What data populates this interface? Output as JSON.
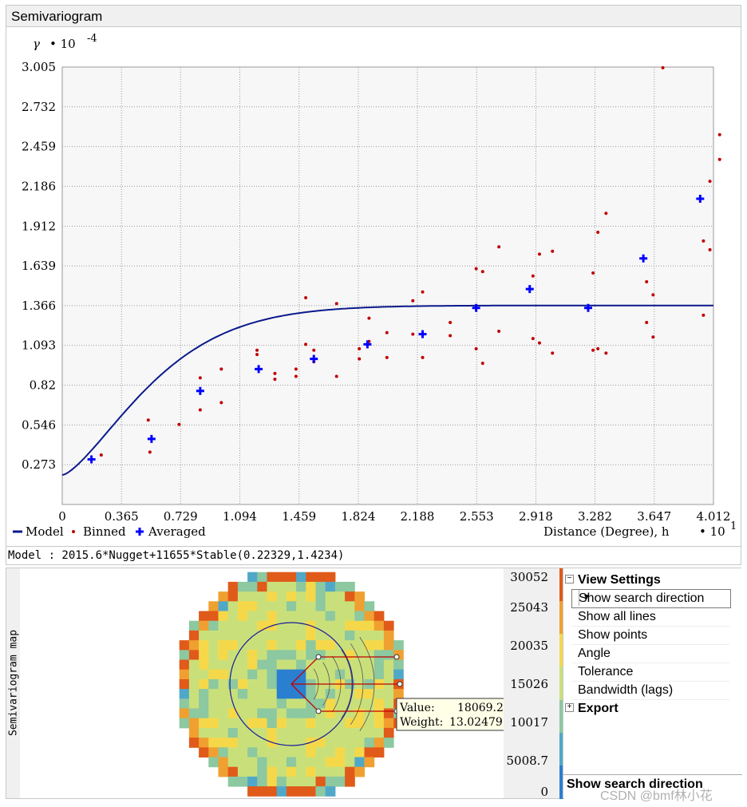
{
  "window": {
    "title": "Semivariogram"
  },
  "chart_data": {
    "type": "scatter",
    "ylabel_symbol": "γ",
    "ylabel_scale": "• 10",
    "ylabel_exp": "-4",
    "xlabel": "Distance (Degree), h",
    "xlabel_scale": "• 10",
    "xlabel_exp": "1",
    "xlim": [
      0,
      4.012
    ],
    "ylim": [
      0,
      3.005
    ],
    "x_ticks": [
      "0",
      "0.365",
      "0.729",
      "1.094",
      "1.459",
      "1.824",
      "2.188",
      "2.553",
      "2.918",
      "3.282",
      "3.647",
      "4.012"
    ],
    "y_ticks": [
      "0.273",
      "0.546",
      "0.82",
      "1.093",
      "1.366",
      "1.639",
      "1.912",
      "2.186",
      "2.459",
      "2.732",
      "3.005"
    ],
    "grid": true,
    "legend": [
      {
        "label": "Model",
        "symbol": "line",
        "color": "#0a1a8c"
      },
      {
        "label": "Binned",
        "symbol": "dot",
        "color": "#c00000"
      },
      {
        "label": "Averaged",
        "symbol": "plus",
        "color": "#0000ff"
      }
    ],
    "model": {
      "nugget": 0.20156,
      "sill_partial": 1.1655,
      "range": 1.4234,
      "shape": 0.22329
    },
    "binned": [
      [
        0.24,
        0.34
      ],
      [
        0.53,
        0.58
      ],
      [
        0.54,
        0.36
      ],
      [
        0.72,
        0.55
      ],
      [
        0.85,
        0.87
      ],
      [
        0.85,
        0.65
      ],
      [
        0.98,
        0.93
      ],
      [
        0.98,
        0.7
      ],
      [
        1.2,
        1.03
      ],
      [
        1.2,
        1.06
      ],
      [
        1.31,
        0.9
      ],
      [
        1.31,
        0.86
      ],
      [
        1.44,
        0.93
      ],
      [
        1.44,
        0.88
      ],
      [
        1.5,
        1.1
      ],
      [
        1.5,
        1.42
      ],
      [
        1.55,
        1.06
      ],
      [
        1.55,
        0.98
      ],
      [
        1.69,
        1.38
      ],
      [
        1.69,
        0.88
      ],
      [
        1.83,
        1.07
      ],
      [
        1.83,
        1.0
      ],
      [
        1.89,
        1.28
      ],
      [
        1.89,
        1.12
      ],
      [
        2.0,
        1.18
      ],
      [
        2.0,
        1.01
      ],
      [
        2.16,
        1.17
      ],
      [
        2.16,
        1.4
      ],
      [
        2.22,
        1.01
      ],
      [
        2.22,
        1.46
      ],
      [
        2.39,
        1.25
      ],
      [
        2.39,
        1.16
      ],
      [
        2.55,
        1.07
      ],
      [
        2.55,
        1.62
      ],
      [
        2.59,
        1.6
      ],
      [
        2.59,
        0.97
      ],
      [
        2.69,
        1.77
      ],
      [
        2.69,
        1.19
      ],
      [
        2.9,
        1.57
      ],
      [
        2.9,
        1.14
      ],
      [
        2.94,
        1.72
      ],
      [
        2.94,
        1.11
      ],
      [
        3.02,
        1.74
      ],
      [
        3.02,
        1.04
      ],
      [
        3.27,
        1.59
      ],
      [
        3.27,
        1.06
      ],
      [
        3.3,
        1.87
      ],
      [
        3.3,
        1.07
      ],
      [
        3.35,
        2.0
      ],
      [
        3.35,
        1.04
      ],
      [
        3.6,
        1.53
      ],
      [
        3.6,
        1.25
      ],
      [
        3.64,
        1.44
      ],
      [
        3.64,
        1.15
      ],
      [
        3.7,
        3.0
      ],
      [
        3.95,
        1.81
      ],
      [
        3.95,
        1.3
      ],
      [
        3.99,
        1.75
      ],
      [
        3.99,
        2.22
      ],
      [
        4.05,
        2.54
      ],
      [
        4.05,
        2.37
      ]
    ],
    "averaged": [
      [
        0.18,
        0.31
      ],
      [
        0.55,
        0.45
      ],
      [
        0.85,
        0.78
      ],
      [
        1.21,
        0.93
      ],
      [
        1.55,
        1.0
      ],
      [
        1.88,
        1.1
      ],
      [
        2.22,
        1.17
      ],
      [
        2.55,
        1.35
      ],
      [
        2.88,
        1.48
      ],
      [
        3.24,
        1.35
      ],
      [
        3.58,
        1.69
      ],
      [
        3.93,
        2.1
      ]
    ]
  },
  "model_text": "Model : 2015.6*Nugget+11655*Stable(0.22329,1.4234)",
  "map": {
    "side_label": "Semivariogram map",
    "tooltip": {
      "value_label": "Value:",
      "value": "18069.21",
      "weight_label": "Weight:",
      "weight": "13.02479"
    }
  },
  "color_legend": {
    "labels": [
      "30052",
      "25043",
      "20035",
      "15026",
      "10017",
      "5008.7",
      "0"
    ],
    "colors": [
      "#e05a1a",
      "#f0a030",
      "#f5d84a",
      "#c9e07a",
      "#8cc8a0",
      "#50a8c8",
      "#2b7fd0"
    ]
  },
  "settings": {
    "view_header": "View Settings",
    "rows": [
      "Show search direction",
      "Show all lines",
      "Show points",
      "Angle",
      "Tolerance",
      "Bandwidth (lags)"
    ],
    "export_header": "Export",
    "desc_title": "Show search direction"
  },
  "watermark": "CSDN @bmf林小花"
}
